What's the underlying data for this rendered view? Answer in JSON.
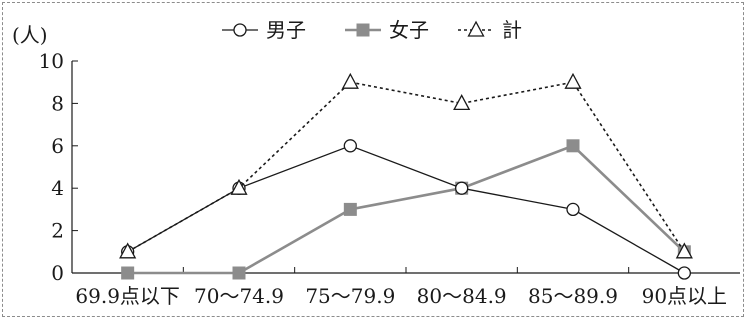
{
  "chart_data": {
    "type": "line",
    "y_unit_label": "(人)",
    "categories": [
      "69.9点以下",
      "70～74.9",
      "75～79.9",
      "80～84.9",
      "85～89.9",
      "90点以上"
    ],
    "ylim": [
      0,
      10
    ],
    "yticks": [
      0,
      2,
      4,
      6,
      8,
      10
    ],
    "grid": false,
    "legend_position": "top-center",
    "series": [
      {
        "name": "男子",
        "values": [
          1,
          4,
          6,
          4,
          3,
          0
        ],
        "color": "#1a1a1a",
        "line": "solid",
        "marker": "circle-open"
      },
      {
        "name": "女子",
        "values": [
          0,
          0,
          3,
          4,
          6,
          1
        ],
        "color": "#8c8c8c",
        "line": "solid",
        "marker": "square-filled"
      },
      {
        "name": "計",
        "values": [
          1,
          4,
          9,
          8,
          9,
          1
        ],
        "color": "#1a1a1a",
        "line": "dashed",
        "marker": "triangle-open"
      }
    ]
  }
}
